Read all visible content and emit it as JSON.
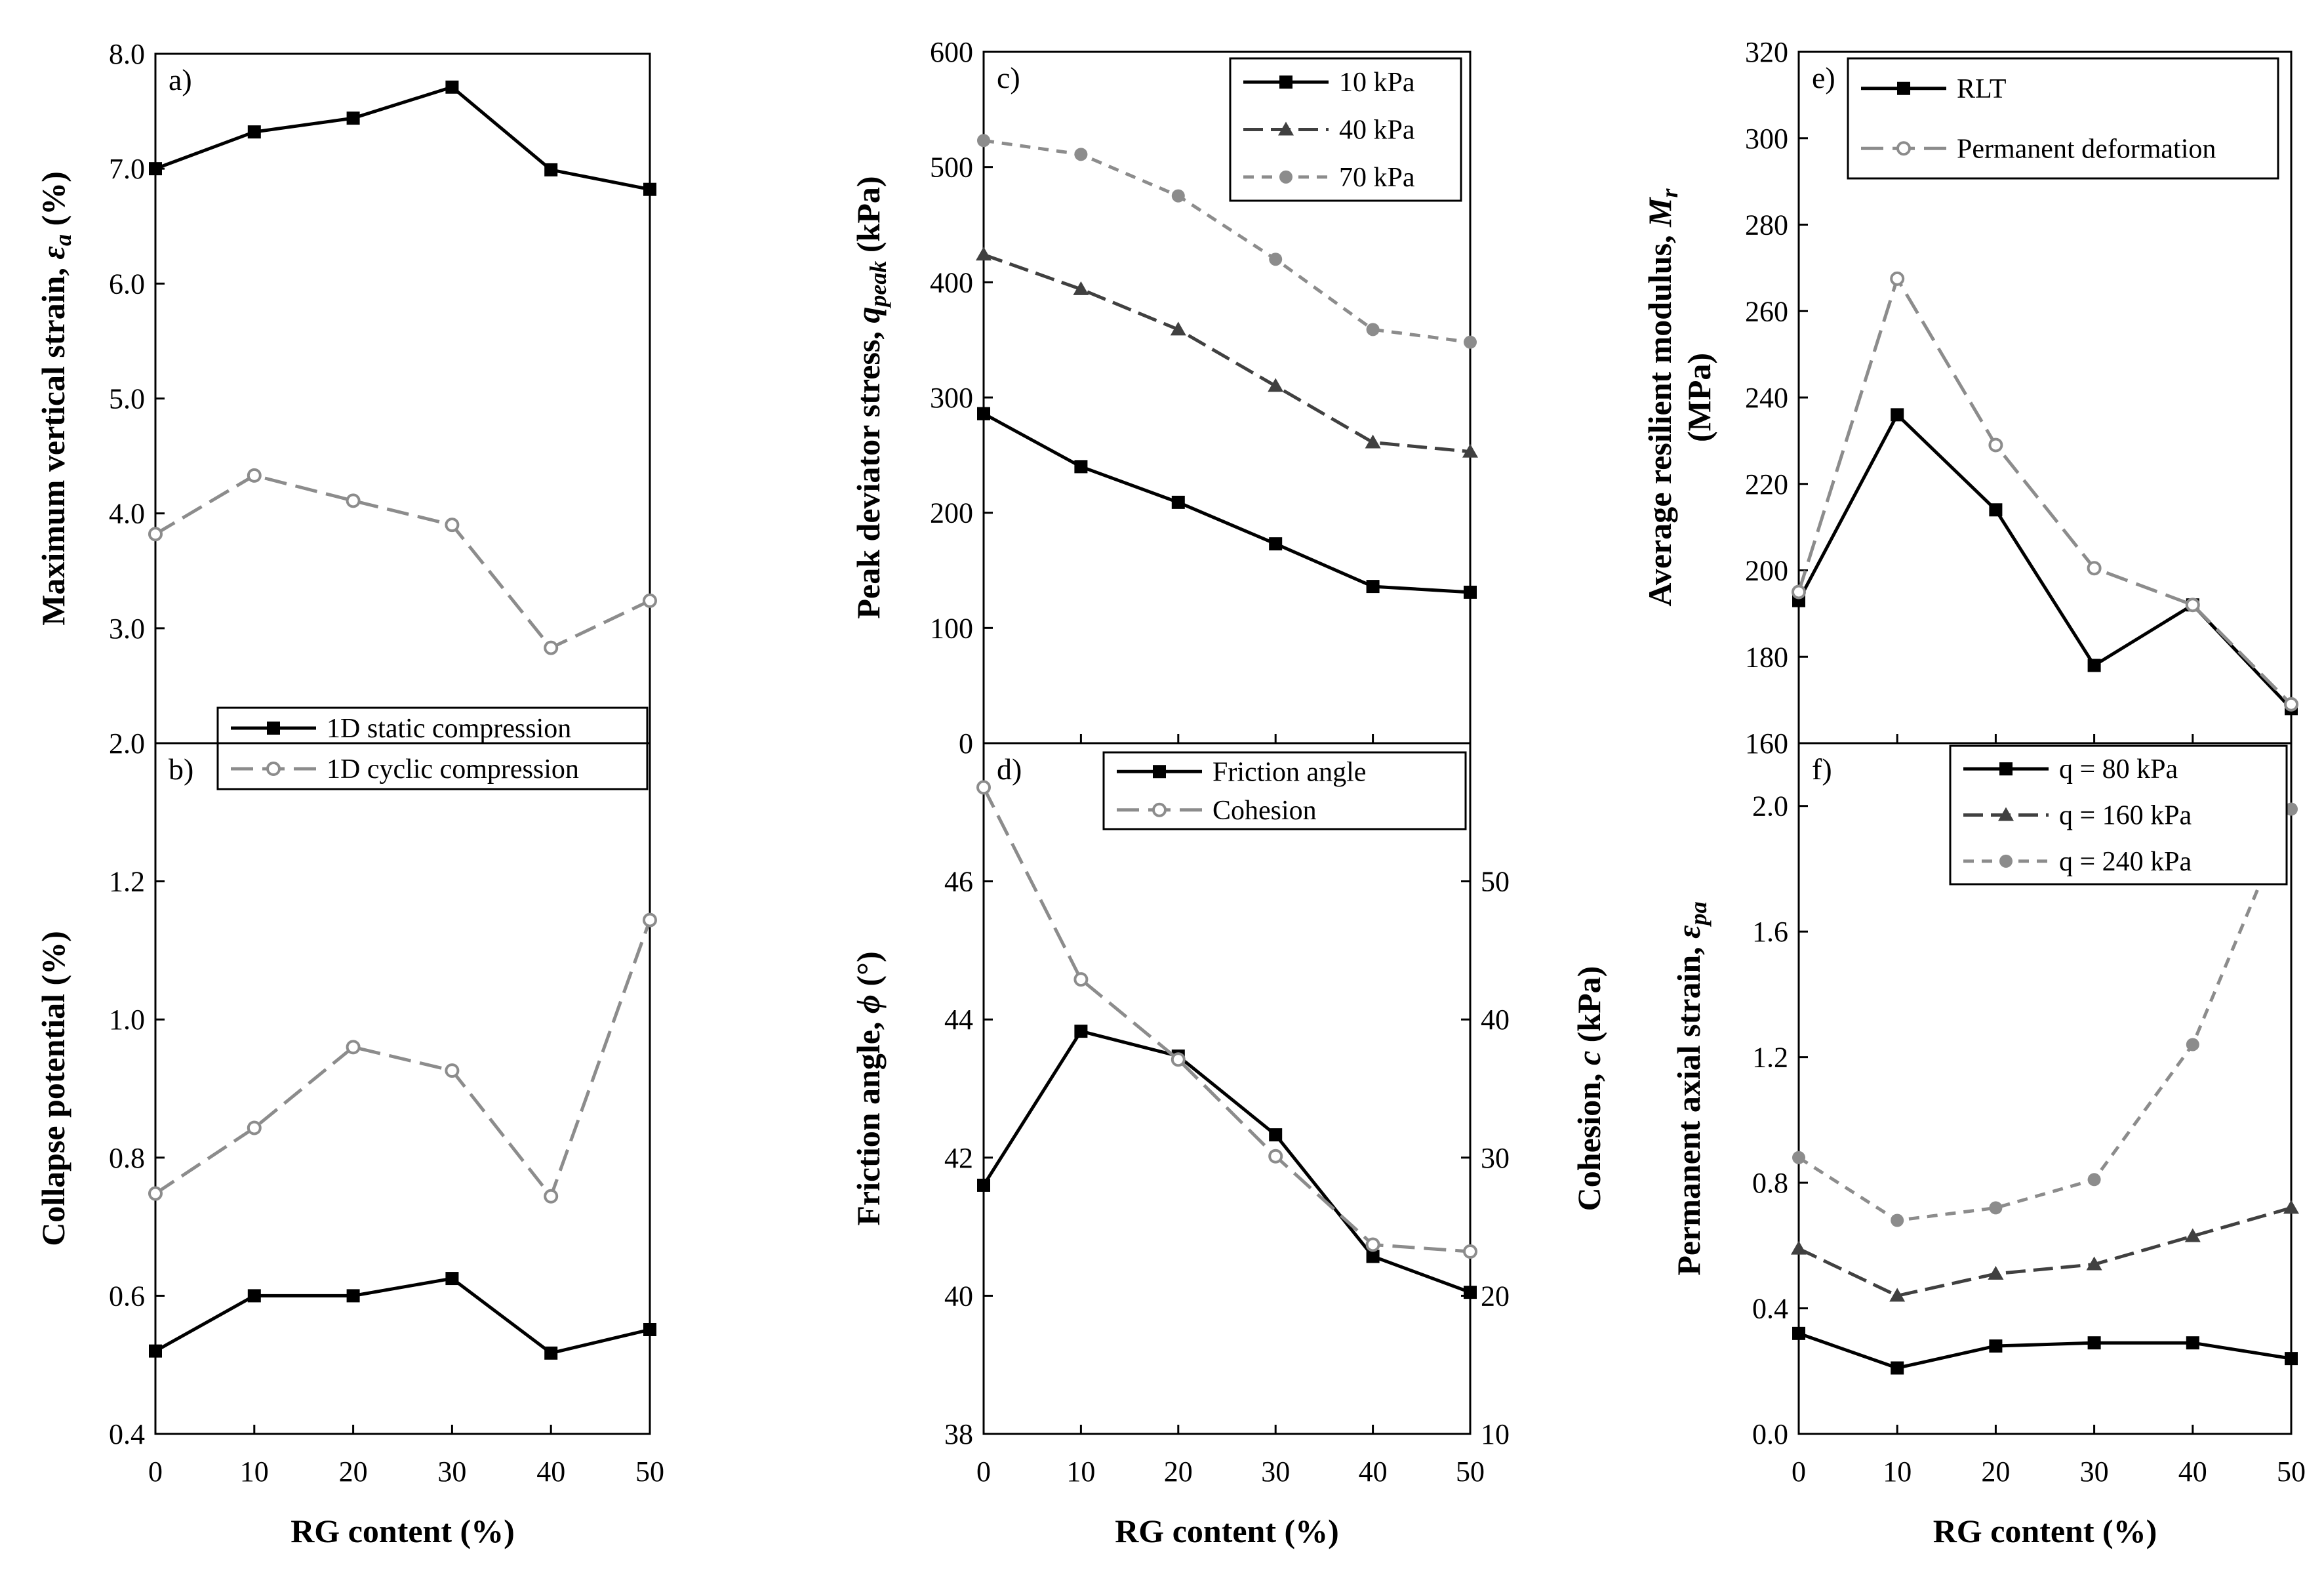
{
  "chart_data": [
    {
      "id": "a",
      "type": "line",
      "panel_label": "a)",
      "x": [
        0,
        10,
        20,
        30,
        40,
        50
      ],
      "xlim": [
        0,
        50
      ],
      "ylim": [
        2.0,
        8.0
      ],
      "yticks": [
        "2.0",
        "3.0",
        "4.0",
        "5.0",
        "6.0",
        "7.0",
        "8.0"
      ],
      "ylabel": "Maximum vertical strain, ε_a (%)",
      "ylabel_main": "Maximum vertical strain, ",
      "ylabel_sym": "ε",
      "ylabel_sub": "a",
      "ylabel_tail": " (%)",
      "series": [
        {
          "name": "1D static compression",
          "style": "black-solid-square",
          "values": [
            7.0,
            7.32,
            7.44,
            7.71,
            6.99,
            6.82
          ]
        },
        {
          "name": "1D cyclic compression",
          "style": "grey-dashed-circle",
          "values": [
            3.82,
            4.33,
            4.11,
            3.9,
            2.83,
            3.24
          ]
        }
      ]
    },
    {
      "id": "b",
      "type": "line",
      "panel_label": "b)",
      "x": [
        0,
        10,
        20,
        30,
        40,
        50
      ],
      "xlim": [
        0,
        50
      ],
      "ylim": [
        0.4,
        1.4
      ],
      "yticks": [
        "0.4",
        "0.6",
        "0.8",
        "1.0",
        "1.2"
      ],
      "xticks": [
        "0",
        "10",
        "20",
        "30",
        "40",
        "50"
      ],
      "xlabel": "RG content (%)",
      "ylabel": "Collapse potential (%)",
      "series": [
        {
          "name": "1D static compression",
          "style": "black-solid-square",
          "values": [
            0.52,
            0.6,
            0.6,
            0.625,
            0.517,
            0.551
          ]
        },
        {
          "name": "1D cyclic compression",
          "style": "grey-dashed-circle",
          "values": [
            0.748,
            0.843,
            0.96,
            0.926,
            0.744,
            1.144
          ]
        }
      ]
    },
    {
      "id": "c",
      "type": "line",
      "panel_label": "c)",
      "x": [
        0,
        10,
        20,
        30,
        40,
        50
      ],
      "xlim": [
        0,
        50
      ],
      "ylim": [
        0,
        600
      ],
      "yticks": [
        "0",
        "100",
        "200",
        "300",
        "400",
        "500",
        "600"
      ],
      "ylabel": "Peak deviator stress, q_peak (kPa)",
      "ylabel_main": "Peak deviator stress, ",
      "ylabel_sym": "q",
      "ylabel_sub": "peak",
      "ylabel_tail": " (kPa)",
      "series": [
        {
          "name": "10 kPa",
          "style": "black-solid-square",
          "values": [
            286,
            240,
            209,
            173,
            136,
            131
          ]
        },
        {
          "name": "40 kPa",
          "style": "dark-dashed-triangle",
          "values": [
            424,
            394,
            359,
            310,
            261,
            253
          ]
        },
        {
          "name": "70 kPa",
          "style": "grey-dotted-circle",
          "values": [
            523,
            511,
            475,
            420,
            359,
            348
          ]
        }
      ]
    },
    {
      "id": "d",
      "type": "line",
      "panel_label": "d)",
      "x": [
        0,
        10,
        20,
        30,
        40,
        50
      ],
      "xlim": [
        0,
        50
      ],
      "ylim": [
        38,
        48
      ],
      "yticks": [
        "38",
        "40",
        "42",
        "44",
        "46"
      ],
      "y2lim": [
        10,
        60
      ],
      "y2ticks": [
        "10",
        "20",
        "30",
        "40",
        "50"
      ],
      "xticks": [
        "0",
        "10",
        "20",
        "30",
        "40",
        "50"
      ],
      "xlabel": "RG content (%)",
      "ylabel": "Friction angle, ϕ (°)",
      "ylabel_main": "Friction angle, ",
      "ylabel_sym": "ϕ",
      "ylabel_tail": " (°)",
      "y2label": "Cohesion, c (kPa)",
      "y2label_main": "Cohesion, ",
      "y2label_sym": "c",
      "y2label_tail": " (kPa)",
      "series": [
        {
          "name": "Friction angle",
          "axis": "left",
          "style": "black-solid-square",
          "values": [
            41.6,
            43.83,
            43.47,
            42.33,
            40.57,
            40.05
          ]
        },
        {
          "name": "Cohesion",
          "axis": "right",
          "style": "grey-dashed-circle",
          "values": [
            56.8,
            42.9,
            37.1,
            30.1,
            23.7,
            23.2
          ]
        }
      ]
    },
    {
      "id": "e",
      "type": "line",
      "panel_label": "e)",
      "x": [
        0,
        10,
        20,
        30,
        40,
        50
      ],
      "xlim": [
        0,
        50
      ],
      "ylim": [
        160,
        320
      ],
      "yticks": [
        "160",
        "180",
        "200",
        "220",
        "240",
        "260",
        "280",
        "300",
        "320"
      ],
      "ylabel": "Average resilient modulus, M_r (MPa)",
      "ylabel_main": "Average resilient modulus, ",
      "ylabel_sym": "M",
      "ylabel_sub": "r",
      "ylabel_line2": "(MPa)",
      "series": [
        {
          "name": "RLT",
          "style": "black-solid-square",
          "values": [
            193,
            236,
            214,
            178,
            192,
            168
          ]
        },
        {
          "name": "Permanent deformation",
          "style": "grey-dashed-circle",
          "values": [
            195,
            267.5,
            229,
            200.5,
            192,
            169
          ]
        }
      ]
    },
    {
      "id": "f",
      "type": "line",
      "panel_label": "f)",
      "x": [
        0,
        10,
        20,
        30,
        40,
        50
      ],
      "xlim": [
        0,
        50
      ],
      "ylim": [
        0.0,
        2.2
      ],
      "yticks": [
        "0.0",
        "0.4",
        "0.8",
        "1.2",
        "1.6",
        "2.0"
      ],
      "xticks": [
        "0",
        "10",
        "20",
        "30",
        "40",
        "50"
      ],
      "xlabel": "RG content (%)",
      "ylabel": "Permanent axial strain, ε_pa",
      "ylabel_main": "Permanent axial strain, ",
      "ylabel_sym": "ε",
      "ylabel_sub": "pa",
      "series": [
        {
          "name": "q = 80 kPa",
          "style": "black-solid-square",
          "values": [
            0.32,
            0.21,
            0.28,
            0.29,
            0.29,
            0.24
          ]
        },
        {
          "name": "q = 160 kPa",
          "style": "dark-dashed-triangle",
          "values": [
            0.59,
            0.44,
            0.51,
            0.54,
            0.63,
            0.72
          ]
        },
        {
          "name": "q = 240 kPa",
          "style": "grey-dotted-circle",
          "values": [
            0.88,
            0.68,
            0.72,
            0.81,
            1.24,
            1.99
          ]
        }
      ]
    }
  ]
}
